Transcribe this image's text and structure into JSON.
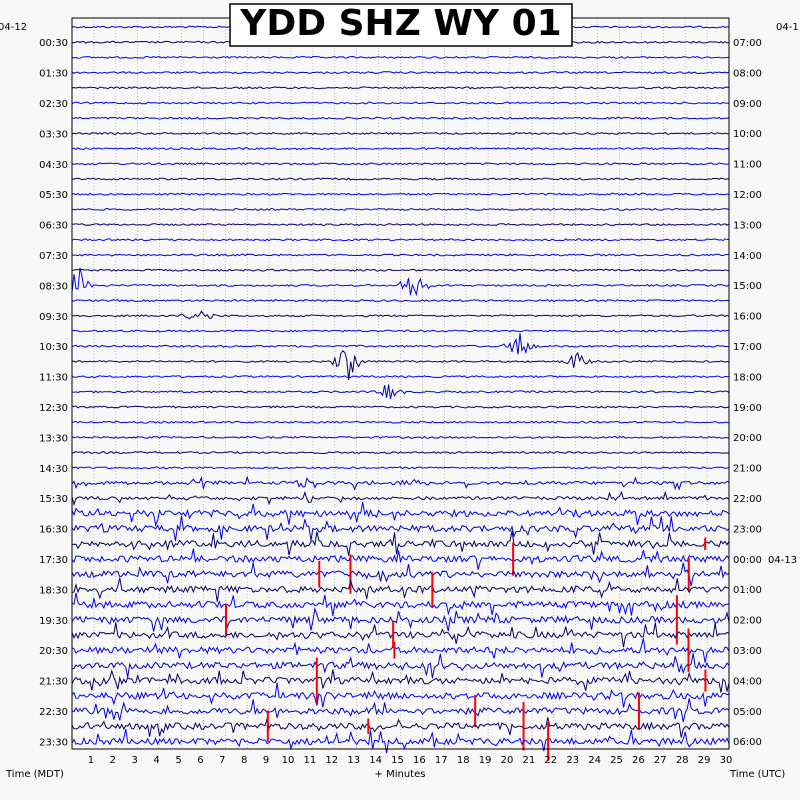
{
  "chart_data": {
    "type": "line",
    "title": "YDD SHZ WY 01",
    "left_date_label": "04-12",
    "right_date_label": "04-1",
    "rollover_date_label": "04-13",
    "xlabel": "+ Minutes",
    "left_axis_label": "Time (MDT)",
    "right_axis_label": "Time (UTC)",
    "x_ticks": [
      "1",
      "2",
      "3",
      "4",
      "5",
      "6",
      "7",
      "8",
      "9",
      "10",
      "11",
      "12",
      "13",
      "14",
      "15",
      "16",
      "17",
      "18",
      "19",
      "20",
      "21",
      "22",
      "23",
      "24",
      "25",
      "26",
      "27",
      "28",
      "29",
      "30"
    ],
    "xlim": [
      0,
      30
    ],
    "left_time_labels": [
      "00:30",
      "01:30",
      "02:30",
      "03:30",
      "04:30",
      "05:30",
      "06:30",
      "07:30",
      "08:30",
      "09:30",
      "10:30",
      "11:30",
      "12:30",
      "13:30",
      "14:30",
      "15:30",
      "16:30",
      "17:30",
      "18:30",
      "19:30",
      "20:30",
      "21:30",
      "22:30",
      "23:30"
    ],
    "right_time_labels": [
      "07:00",
      "08:00",
      "09:00",
      "10:00",
      "11:00",
      "12:00",
      "13:00",
      "14:00",
      "15:00",
      "16:00",
      "17:00",
      "18:00",
      "19:00",
      "20:00",
      "21:00",
      "22:00",
      "23:00",
      "00:00",
      "01:00",
      "02:00",
      "03:00",
      "04:00",
      "05:00",
      "06:00"
    ],
    "rollover_index": 17,
    "traces_per_hour": 2,
    "trace_colors": [
      "#0000cc",
      "#000066",
      "#0000ff"
    ],
    "clip_color": "#ff0000",
    "grid": true,
    "events": [
      {
        "hour": 8,
        "trace": 1,
        "minute": 0.3,
        "amplitude": "large"
      },
      {
        "hour": 8,
        "trace": 1,
        "minute": 15.5,
        "amplitude": "large"
      },
      {
        "hour": 9,
        "trace": 1,
        "minute": 5.8,
        "amplitude": "medium"
      },
      {
        "hour": 10,
        "trace": 1,
        "minute": 20.5,
        "amplitude": "large"
      },
      {
        "hour": 11,
        "trace": 0,
        "minute": 12.6,
        "amplitude": "large"
      },
      {
        "hour": 11,
        "trace": 0,
        "minute": 23.0,
        "amplitude": "medium"
      },
      {
        "hour": 12,
        "trace": 0,
        "minute": 14.5,
        "amplitude": "medium"
      },
      {
        "hour": 15,
        "trace": 0,
        "minute": 10.7,
        "amplitude": "medium"
      }
    ]
  }
}
